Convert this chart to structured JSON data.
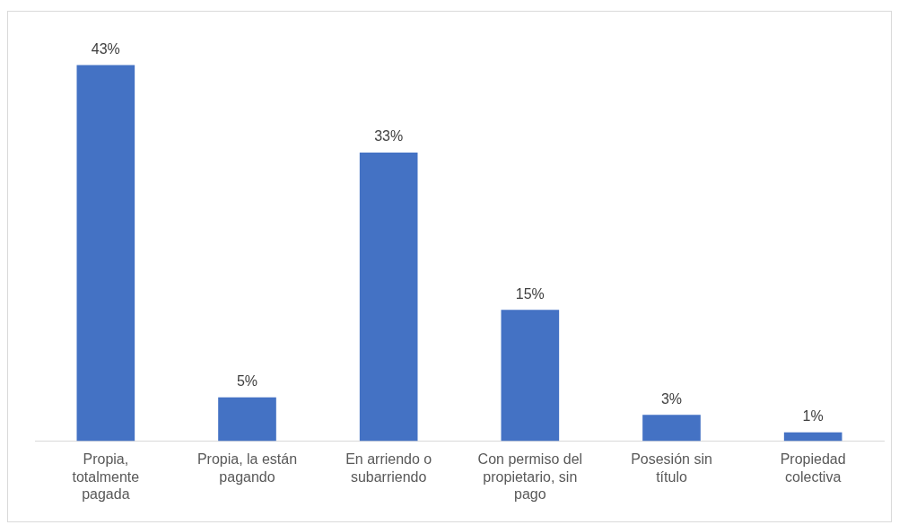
{
  "chart_data": {
    "type": "bar",
    "categories": [
      "Propia, totalmente pagada",
      "Propia, la están pagando",
      "En arriendo o subarriendo",
      "Con permiso del propietario, sin pago",
      "Posesión sin título",
      "Propiedad colectiva"
    ],
    "values": [
      43,
      5,
      33,
      15,
      3,
      1
    ],
    "value_labels": [
      "43%",
      "5%",
      "33%",
      "15%",
      "3%",
      "1%"
    ],
    "color": "#4472c4"
  }
}
